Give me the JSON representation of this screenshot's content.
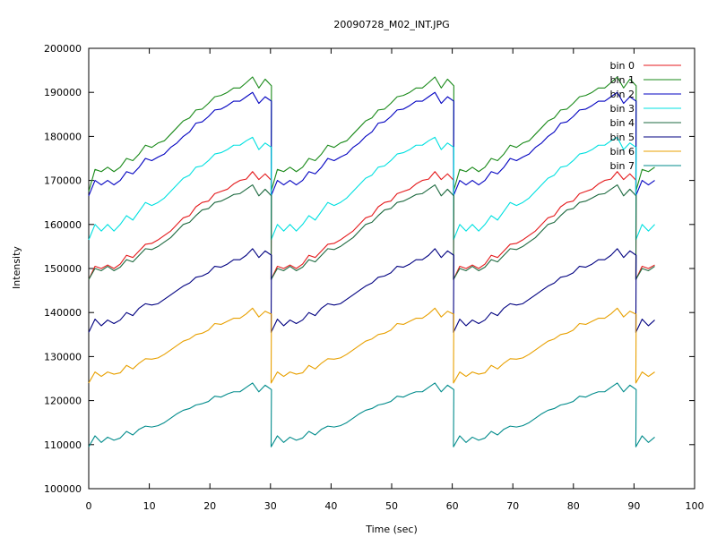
{
  "chart_data": {
    "type": "line",
    "title": "20090728_M02_INT.JPG",
    "xlabel": "Time (sec)",
    "ylabel": "Intensity",
    "xlim": [
      0,
      100
    ],
    "ylim": [
      100000,
      200000
    ],
    "xticks": [
      0,
      10,
      20,
      30,
      40,
      50,
      60,
      70,
      80,
      90,
      100
    ],
    "yticks": [
      100000,
      110000,
      120000,
      130000,
      140000,
      150000,
      160000,
      170000,
      180000,
      190000,
      200000
    ],
    "grid": false,
    "legend_position": "top-right",
    "cycle": {
      "period_sec": 30,
      "sample_offsets_sec": [
        0,
        1,
        2,
        3,
        4,
        5,
        6,
        7,
        8,
        9,
        10,
        11,
        12,
        13,
        14,
        15,
        16,
        17,
        18,
        19,
        20,
        21,
        22,
        23,
        24,
        25,
        26,
        27,
        28,
        29
      ],
      "cycle_starts_sec": [
        0,
        30,
        60,
        90
      ],
      "final_cycle_samples": 4
    },
    "series": [
      {
        "name": "bin 0",
        "color": "#e41a1c",
        "values": [
          147500,
          150500,
          150000,
          150800,
          150000,
          151000,
          153000,
          152500,
          154000,
          155500,
          155700,
          156500,
          157500,
          158500,
          160000,
          161500,
          162000,
          164000,
          165000,
          165300,
          167000,
          167500,
          168000,
          169200,
          170000,
          170300,
          172000,
          170200,
          171500,
          170000
        ]
      },
      {
        "name": "bin 1",
        "color": "#1a8a1a",
        "values": [
          167500,
          172500,
          172000,
          173000,
          172000,
          173000,
          175000,
          174500,
          176000,
          178000,
          177500,
          178500,
          179000,
          180500,
          182000,
          183500,
          184200,
          186000,
          186200,
          187500,
          189000,
          189300,
          190000,
          191000,
          191000,
          192200,
          193500,
          191000,
          193000,
          191500
        ]
      },
      {
        "name": "bin 2",
        "color": "#0000c0",
        "values": [
          166500,
          170000,
          169000,
          170000,
          169000,
          170000,
          172000,
          171500,
          173000,
          175000,
          174500,
          175300,
          176000,
          177500,
          178500,
          180000,
          181000,
          183000,
          183300,
          184500,
          186000,
          186200,
          187000,
          188000,
          188000,
          189000,
          190000,
          187500,
          189000,
          188000
        ]
      },
      {
        "name": "bin 3",
        "color": "#00e0e0",
        "values": [
          156500,
          160000,
          158500,
          160000,
          158500,
          160000,
          162000,
          161000,
          163000,
          165000,
          164300,
          165000,
          166000,
          167500,
          169000,
          170500,
          171200,
          173000,
          173300,
          174500,
          176000,
          176300,
          177000,
          178000,
          178000,
          179000,
          179800,
          177000,
          178500,
          177500
        ]
      },
      {
        "name": "bin 4",
        "color": "#1e6a40",
        "values": [
          147500,
          150000,
          149500,
          150500,
          149500,
          150300,
          152000,
          151500,
          153000,
          154500,
          154300,
          155000,
          156000,
          157000,
          158500,
          160000,
          160500,
          162000,
          163300,
          163600,
          165000,
          165300,
          166000,
          166800,
          167000,
          168000,
          169000,
          166500,
          168000,
          166500
        ]
      },
      {
        "name": "bin 5",
        "color": "#000080",
        "values": [
          135500,
          138500,
          137000,
          138300,
          137500,
          138300,
          140000,
          139300,
          141000,
          142000,
          141700,
          142000,
          143000,
          144000,
          145000,
          146000,
          146700,
          148000,
          148300,
          149000,
          150500,
          150300,
          151000,
          152000,
          152000,
          153000,
          154500,
          152500,
          154000,
          153000
        ]
      },
      {
        "name": "bin 6",
        "color": "#e8a000",
        "values": [
          124000,
          126500,
          125500,
          126500,
          126000,
          126300,
          128000,
          127200,
          128500,
          129500,
          129400,
          129700,
          130500,
          131500,
          132500,
          133500,
          134000,
          135000,
          135300,
          136000,
          137500,
          137300,
          138000,
          138700,
          138700,
          139700,
          141000,
          139000,
          140300,
          139600
        ]
      },
      {
        "name": "bin 7",
        "color": "#008b8b",
        "values": [
          109500,
          112000,
          110500,
          111700,
          111000,
          111500,
          113000,
          112200,
          113500,
          114200,
          114000,
          114300,
          115000,
          116000,
          117000,
          117800,
          118200,
          119000,
          119300,
          119800,
          121000,
          120800,
          121500,
          122000,
          122000,
          123000,
          124000,
          122000,
          123500,
          122500
        ]
      }
    ]
  }
}
